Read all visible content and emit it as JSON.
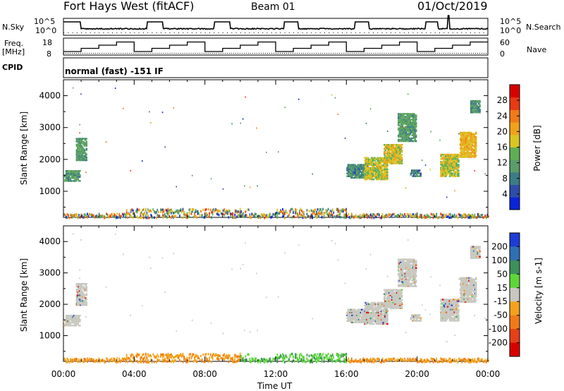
{
  "header": {
    "station": "Fort Hays West (fitACF)",
    "beam": "Beam 01",
    "date": "01/Oct/2019"
  },
  "strip": {
    "nsky_label": "N.Sky",
    "nsearch_label": "N.Search",
    "freq_label_1": "Freq.",
    "freq_label_2": "[MHz]",
    "nave_label": "Nave",
    "cpid_label": "CPID",
    "mode_text": "normal (fast) -151 IF",
    "noise_ticks": [
      "10^5",
      "10^0"
    ],
    "freq_ticks": [
      "18",
      "8"
    ],
    "nave_ticks": [
      "60",
      "0"
    ]
  },
  "chart_data": [
    {
      "type": "heatmap",
      "name": "power",
      "xlabel": "",
      "ylabel": "Slant Range [km]",
      "xlim_hours": [
        0,
        24
      ],
      "ylim": [
        180,
        4500
      ],
      "y_ticks": [
        1000,
        2000,
        3000,
        4000
      ],
      "colorbar": {
        "label": "Power [dB]",
        "ticks": [
          4,
          8,
          12,
          16,
          20,
          24,
          28
        ],
        "range": [
          0,
          32
        ],
        "colors": [
          "#0b23d9",
          "#2f4ca8",
          "#3b7c85",
          "#5c9c6a",
          "#5fae56",
          "#d9c524",
          "#f0a21b",
          "#f07a19",
          "#e83a14",
          "#d90000"
        ]
      },
      "echo_regions": [
        {
          "t0": 0.0,
          "t1": 0.9,
          "r0": 1350,
          "r1": 1700,
          "level": 10
        },
        {
          "t0": 0.7,
          "t1": 1.3,
          "r0": 2000,
          "r1": 2700,
          "level": 11
        },
        {
          "t0": 16.0,
          "t1": 17.2,
          "r0": 1450,
          "r1": 1900,
          "level": 9
        },
        {
          "t0": 17.0,
          "t1": 18.3,
          "r0": 1400,
          "r1": 2100,
          "level": 17
        },
        {
          "t0": 18.1,
          "t1": 19.1,
          "r0": 1900,
          "r1": 2500,
          "level": 18
        },
        {
          "t0": 18.9,
          "t1": 19.9,
          "r0": 2600,
          "r1": 3500,
          "level": 11
        },
        {
          "t0": 19.6,
          "t1": 20.2,
          "r0": 1500,
          "r1": 1700,
          "level": 8
        },
        {
          "t0": 21.3,
          "t1": 22.3,
          "r0": 1500,
          "r1": 2200,
          "level": 17
        },
        {
          "t0": 22.4,
          "t1": 23.3,
          "r0": 2100,
          "r1": 2900,
          "level": 20
        },
        {
          "t0": 23.0,
          "t1": 23.5,
          "r0": 3500,
          "r1": 3900,
          "level": 9
        }
      ]
    },
    {
      "type": "heatmap",
      "name": "velocity",
      "xlabel": "Time UT",
      "ylabel": "Slant Range [km]",
      "xlim_hours": [
        0,
        24
      ],
      "ylim": [
        180,
        4500
      ],
      "x_ticks": [
        "00:00",
        "04:00",
        "08:00",
        "12:00",
        "16:00",
        "20:00",
        "00:00"
      ],
      "y_ticks": [
        1000,
        2000,
        3000,
        4000
      ],
      "colorbar": {
        "label": "Velocity [m s-1]",
        "ticks": [
          "200",
          "100",
          "50",
          "15",
          "-15",
          "-50",
          "-100",
          "-200"
        ],
        "colors": [
          "#1e3cd6",
          "#2f6fb3",
          "#3e8f5e",
          "#5ed63a",
          "#c8c8c0",
          "#f3a21d",
          "#f07a19",
          "#e5401a",
          "#d90000"
        ]
      }
    }
  ]
}
